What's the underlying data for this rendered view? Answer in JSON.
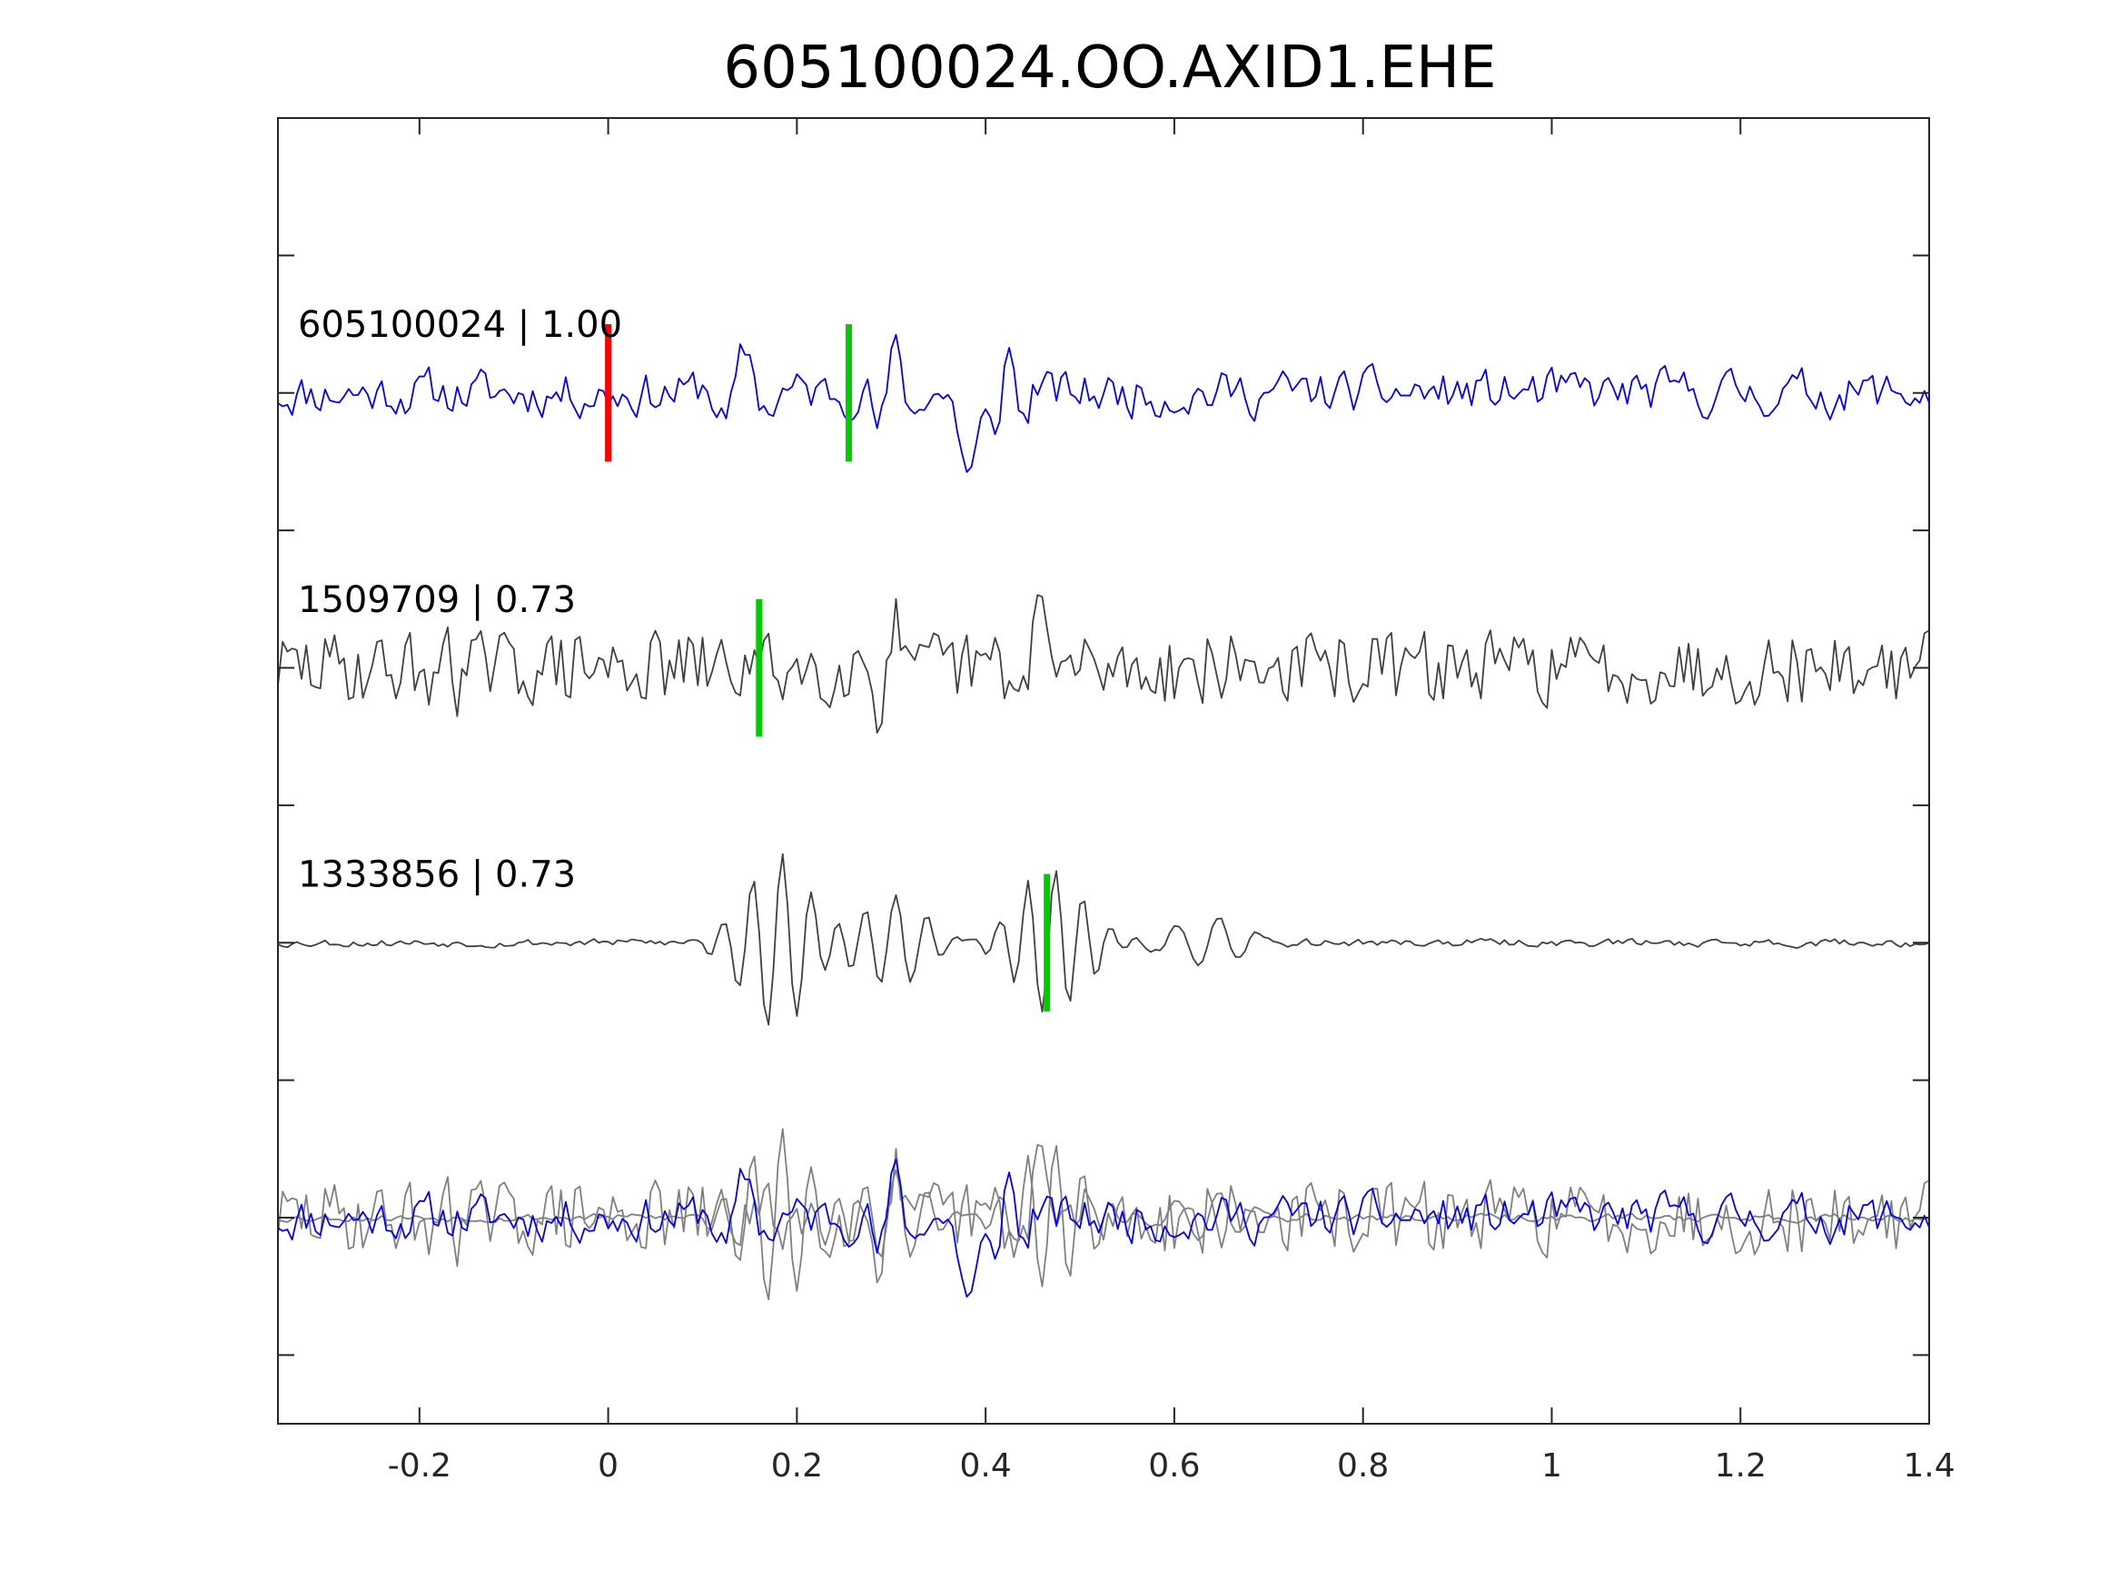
{
  "chart_data": {
    "type": "line",
    "title": "605100024.OO.AXID1.EHE",
    "xlabel": "",
    "ylabel": "",
    "xlim": [
      -0.35,
      1.4
    ],
    "xticks": [
      -0.2,
      0,
      0.2,
      0.4,
      0.6,
      0.8,
      1,
      1.2,
      1.4
    ],
    "xtick_labels": [
      "-0.2",
      "0",
      "0.2",
      "0.4",
      "0.6",
      "0.8",
      "1",
      "1.2",
      "1.4"
    ],
    "ylim": [
      -4.5,
      5
    ],
    "yticks": [
      -4,
      -3,
      -2,
      -1,
      0,
      1,
      2,
      3,
      4
    ],
    "grid": false,
    "legend": "none",
    "sample_interval": 0.005,
    "traces": [
      {
        "label": "605100024 | 1.00",
        "offset": 3,
        "color": "#0000ff",
        "picks": [
          {
            "t": 0.0,
            "color": "#ff0000"
          },
          {
            "t": 0.255,
            "color": "#00cc00"
          }
        ],
        "events": [
          {
            "t": 0.14,
            "a": 0.3,
            "s": 0.03,
            "f": 20
          },
          {
            "t": 0.3,
            "a": 0.3,
            "s": 0.03,
            "f": 25
          },
          {
            "t": 0.385,
            "a": -0.6,
            "s": 0.015,
            "f": 0
          },
          {
            "t": 0.42,
            "a": 0.3,
            "s": 0.03,
            "f": 30
          }
        ],
        "seed": 11,
        "noise": 0.26,
        "hf": 0.55
      },
      {
        "label": "1509709 | 0.73",
        "offset": 1,
        "color": "#404040",
        "picks": [
          {
            "t": 0.16,
            "color": "#00cc00"
          }
        ],
        "events": [
          {
            "t": -0.175,
            "a": 0.35,
            "s": 0.02,
            "f": 30
          },
          {
            "t": 0.3,
            "a": 0.3,
            "s": 0.03,
            "f": 25
          },
          {
            "t": 0.45,
            "a": 0.55,
            "s": 0.02,
            "f": 18
          }
        ],
        "seed": 29,
        "noise": 0.3,
        "hf": 0.85
      },
      {
        "label": "1333856 | 0.73",
        "offset": -1,
        "color": "#404040",
        "picks": [
          {
            "t": 0.465,
            "color": "#00cc00"
          }
        ],
        "events": [
          {
            "t": 0.18,
            "a": 0.65,
            "s": 0.05,
            "f": 32
          },
          {
            "t": 0.3,
            "a": 0.35,
            "s": 0.05,
            "f": 30
          },
          {
            "t": 0.47,
            "a": 0.55,
            "s": 0.05,
            "f": 34
          },
          {
            "t": 0.64,
            "a": 0.2,
            "s": 0.05,
            "f": 22
          }
        ],
        "seed": 53,
        "noise": 0.05,
        "hf": 0.5
      }
    ],
    "overlay": {
      "offset": -3,
      "colors": [
        "#0000ff",
        "#808080",
        "#808080"
      ]
    }
  }
}
